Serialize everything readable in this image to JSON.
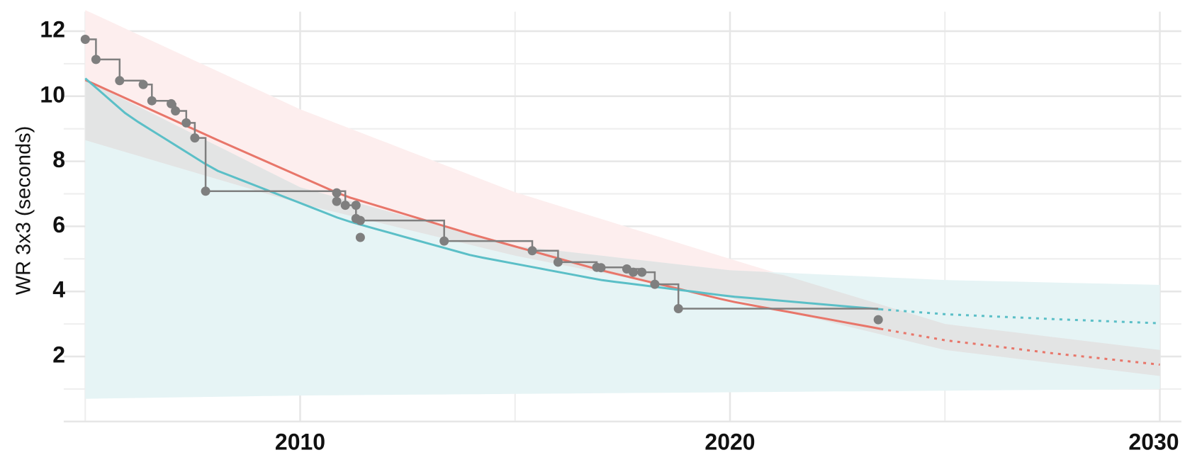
{
  "chart_data": {
    "type": "line",
    "title": "",
    "xlabel": "",
    "ylabel": "WR 3x3 (seconds)",
    "xlim": [
      2004.5,
      2030.5
    ],
    "ylim": [
      0,
      12.6
    ],
    "x_major_ticks": [
      2010,
      2020,
      2030
    ],
    "x_tick_labels": [
      "2010",
      "2020",
      "2030"
    ],
    "y_major_ticks": [
      2,
      4,
      6,
      8,
      10,
      12
    ],
    "y_tick_labels": [
      "2",
      "4",
      "6",
      "8",
      "10",
      "12"
    ],
    "grid": true,
    "legend": "none",
    "colors": {
      "records": "#7f7f7f",
      "red_fit": "#e8766a",
      "teal_fit": "#5bbfc7",
      "red_band": "#fdeeee",
      "teal_band": "#e6f4f5",
      "grey_band": "#e3e3e3",
      "grid": "#e6e6e6"
    },
    "world_records": {
      "points": [
        {
          "x": 2005.0,
          "y": 11.75
        },
        {
          "x": 2005.25,
          "y": 11.13
        },
        {
          "x": 2005.8,
          "y": 10.48
        },
        {
          "x": 2006.35,
          "y": 10.36
        },
        {
          "x": 2006.55,
          "y": 9.86
        },
        {
          "x": 2007.0,
          "y": 9.77
        },
        {
          "x": 2007.1,
          "y": 9.55
        },
        {
          "x": 2007.35,
          "y": 9.18
        },
        {
          "x": 2007.55,
          "y": 8.72
        },
        {
          "x": 2007.8,
          "y": 7.08
        },
        {
          "x": 2010.85,
          "y": 7.03
        },
        {
          "x": 2010.85,
          "y": 6.77
        },
        {
          "x": 2011.05,
          "y": 6.65
        },
        {
          "x": 2011.3,
          "y": 6.65
        },
        {
          "x": 2011.3,
          "y": 6.24
        },
        {
          "x": 2011.4,
          "y": 6.18
        },
        {
          "x": 2011.4,
          "y": 5.66
        },
        {
          "x": 2013.35,
          "y": 5.55
        },
        {
          "x": 2015.4,
          "y": 5.25
        },
        {
          "x": 2016.0,
          "y": 4.9
        },
        {
          "x": 2016.9,
          "y": 4.74
        },
        {
          "x": 2017.0,
          "y": 4.73
        },
        {
          "x": 2017.6,
          "y": 4.69
        },
        {
          "x": 2017.75,
          "y": 4.59
        },
        {
          "x": 2017.95,
          "y": 4.59
        },
        {
          "x": 2018.25,
          "y": 4.22
        },
        {
          "x": 2018.8,
          "y": 3.47
        },
        {
          "x": 2023.45,
          "y": 3.13
        }
      ],
      "step_path": [
        {
          "x": 2005.0,
          "y": 11.75
        },
        {
          "x": 2005.25,
          "y": 11.13
        },
        {
          "x": 2005.8,
          "y": 10.48
        },
        {
          "x": 2006.35,
          "y": 10.36
        },
        {
          "x": 2006.55,
          "y": 9.86
        },
        {
          "x": 2007.0,
          "y": 9.77
        },
        {
          "x": 2007.1,
          "y": 9.55
        },
        {
          "x": 2007.35,
          "y": 9.18
        },
        {
          "x": 2007.55,
          "y": 8.72
        },
        {
          "x": 2007.8,
          "y": 7.08
        },
        {
          "x": 2011.05,
          "y": 6.65
        },
        {
          "x": 2011.3,
          "y": 6.24
        },
        {
          "x": 2011.4,
          "y": 6.18
        },
        {
          "x": 2013.35,
          "y": 5.55
        },
        {
          "x": 2015.4,
          "y": 5.25
        },
        {
          "x": 2016.0,
          "y": 4.9
        },
        {
          "x": 2016.9,
          "y": 4.74
        },
        {
          "x": 2017.6,
          "y": 4.69
        },
        {
          "x": 2017.95,
          "y": 4.59
        },
        {
          "x": 2018.25,
          "y": 4.22
        },
        {
          "x": 2018.8,
          "y": 3.47
        },
        {
          "x": 2023.45,
          "y": 3.47
        }
      ]
    },
    "fits": [
      {
        "color": "red",
        "fitted": {
          "x": [
            2005.0,
            2008,
            2011,
            2014,
            2017,
            2020,
            2023.5
          ],
          "y": [
            10.5,
            8.7,
            6.95,
            5.75,
            4.65,
            3.7,
            2.85
          ]
        },
        "forecast": {
          "x": [
            2023.5,
            2025,
            2027.5,
            2030
          ],
          "y": [
            2.85,
            2.5,
            2.1,
            1.75
          ]
        },
        "band": {
          "x": [
            2005.0,
            2010,
            2015,
            2020,
            2025,
            2030
          ],
          "lower": [
            8.65,
            6.7,
            5.1,
            3.8,
            2.2,
            1.4
          ],
          "upper": [
            12.65,
            9.6,
            7.05,
            5.0,
            3.0,
            2.2
          ]
        }
      },
      {
        "color": "teal",
        "fitted": {
          "x": [
            2005.0,
            2006,
            2008,
            2011,
            2014,
            2017,
            2020,
            2023.5
          ],
          "y": [
            10.55,
            9.4,
            7.75,
            6.2,
            5.1,
            4.35,
            3.85,
            3.45
          ]
        },
        "forecast": {
          "x": [
            2023.5,
            2025,
            2027.5,
            2030
          ],
          "y": [
            3.45,
            3.3,
            3.15,
            3.02
          ]
        },
        "band": {
          "x": [
            2005.0,
            2010,
            2015,
            2020,
            2025,
            2030
          ],
          "lower": [
            0.7,
            0.8,
            0.85,
            0.9,
            0.95,
            1.0
          ],
          "upper": [
            10.5,
            7.2,
            5.4,
            4.65,
            4.35,
            4.2
          ]
        }
      }
    ]
  }
}
